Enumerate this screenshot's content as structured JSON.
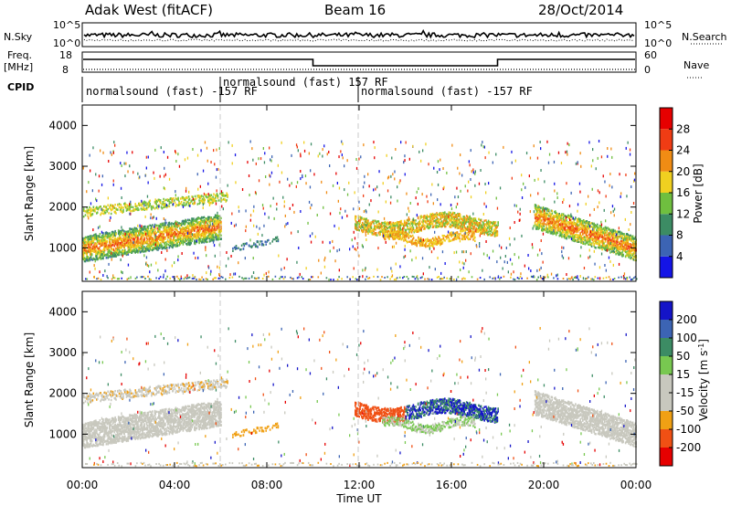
{
  "header": {
    "radar": "Adak West (fitACF)",
    "beam": "Beam 16",
    "date": "28/Oct/2014"
  },
  "params": {
    "nsky_label": "N.Sky",
    "nsearch_label": "N.Search",
    "freq_label_1": "Freq.",
    "freq_label_2": "[MHz]",
    "nave_label": "Nave",
    "cpid_label": "CPID",
    "left_ticks_top": [
      "10^5",
      "10^0"
    ],
    "right_ticks_top": [
      "10^5",
      "10^0"
    ],
    "left_ticks_freq": [
      "18",
      "8"
    ],
    "right_ticks_nave": [
      "60",
      "0"
    ],
    "cpid_segments": [
      {
        "label": "normalsound (fast) -157 RF",
        "start": 0,
        "end": 6
      },
      {
        "label": "normalsound (fast) 157 RF",
        "start": 6,
        "end": 12
      },
      {
        "label": "normalsound (fast) -157 RF",
        "start": 12,
        "end": 24
      }
    ]
  },
  "chart_data": [
    {
      "type": "heatmap",
      "panel": "power",
      "ylabel": "Slant Range [km]",
      "xlabel": "",
      "x_ticks": [
        "00:00",
        "04:00",
        "08:00",
        "12:00",
        "16:00",
        "20:00",
        "00:00"
      ],
      "xlim": [
        0,
        24
      ],
      "ylim": [
        180,
        4500
      ],
      "y_ticks": [
        "1000",
        "2000",
        "3000",
        "4000"
      ],
      "colorbar_label": "Power [dB]",
      "colorbar_ticks": [
        "4",
        "8",
        "12",
        "16",
        "20",
        "24",
        "28"
      ],
      "colorbar_colors": [
        "#1414e6",
        "#3c64b4",
        "#3c8c64",
        "#6fbf3f",
        "#f0d020",
        "#f08c14",
        "#f03c14",
        "#e60000"
      ],
      "colorbar_range": [
        0,
        32
      ]
    },
    {
      "type": "heatmap",
      "panel": "velocity",
      "ylabel": "Slant Range [km]",
      "xlabel": "Time UT",
      "x_ticks": [
        "00:00",
        "04:00",
        "08:00",
        "12:00",
        "16:00",
        "20:00",
        "00:00"
      ],
      "xlim": [
        0,
        24
      ],
      "ylim": [
        180,
        4500
      ],
      "y_ticks": [
        "1000",
        "2000",
        "3000",
        "4000"
      ],
      "colorbar_label": "Velocity [m s",
      "colorbar_label_sup": "-1",
      "colorbar_label_end": "]",
      "colorbar_ticks": [
        "-200",
        "-100",
        "-50",
        "-15",
        "15",
        "50",
        "100",
        "200"
      ],
      "colorbar_colors": [
        "#e60000",
        "#f05014",
        "#f0a014",
        "#c8c8be",
        "#c8c8be",
        "#78c850",
        "#3c8c64",
        "#3c64b4",
        "#1414c8"
      ]
    }
  ]
}
